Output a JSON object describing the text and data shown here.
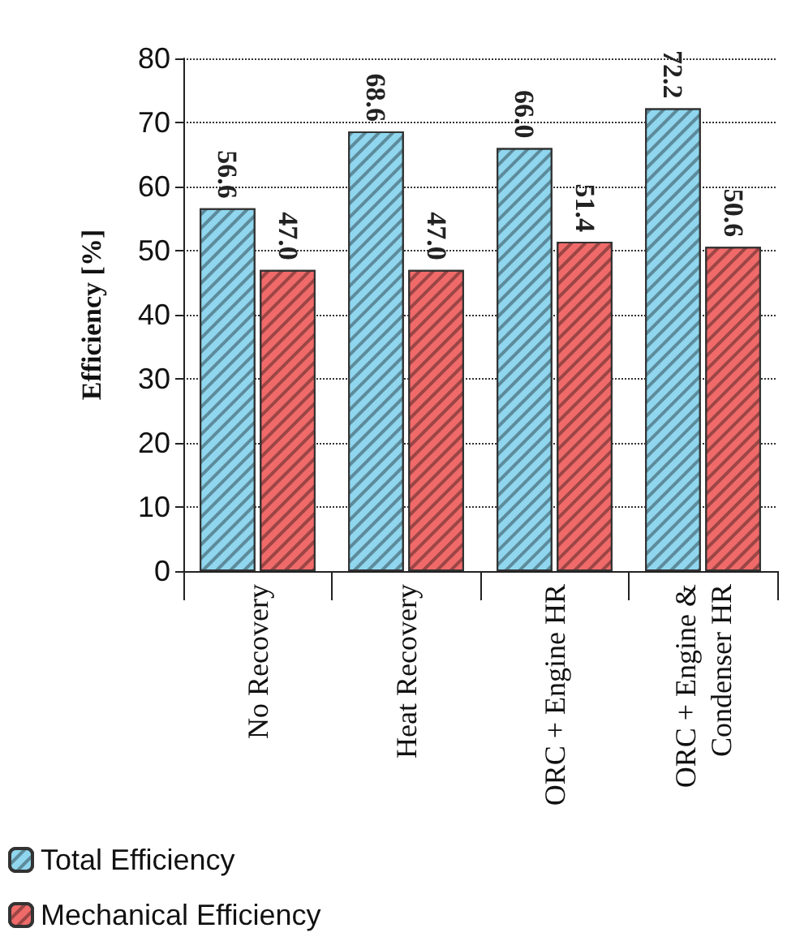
{
  "chart_data": {
    "type": "bar",
    "ylabel": "Efficiency [%]",
    "categories": [
      "No Recovery",
      "Heat Recovery",
      "ORC + Engine HR",
      "ORC + Engine &\nCondenser HR"
    ],
    "series": [
      {
        "name": "Total Efficiency",
        "color": "#8fd6ee",
        "values": [
          56.6,
          68.6,
          66,
          72.2
        ],
        "value_labels": [
          "56.6",
          "68.6",
          "66.0",
          "72.2"
        ]
      },
      {
        "name": "Mechanical Efficiency",
        "color": "#f06a6a",
        "values": [
          47,
          47,
          51.4,
          50.6
        ],
        "value_labels": [
          "47.0",
          "47.0",
          "51.4",
          "50.6"
        ]
      }
    ],
    "ylim": [
      0,
      80
    ],
    "yticks": [
      0,
      10,
      20,
      30,
      40,
      50,
      60,
      70,
      80
    ],
    "grid": "y",
    "legend": "bottom left"
  }
}
